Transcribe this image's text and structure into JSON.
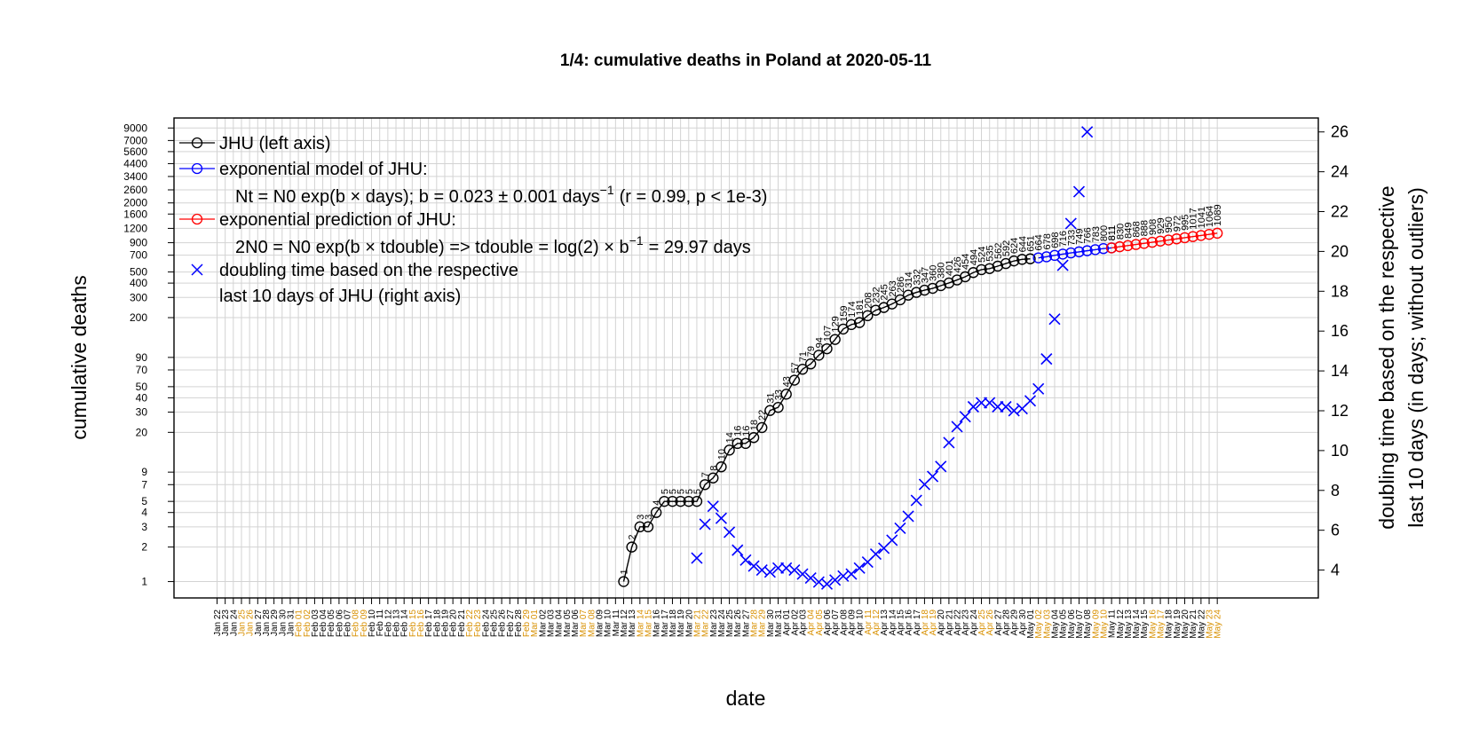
{
  "chart_data": {
    "type": "line",
    "title": "1/4: cumulative deaths in Poland at 2020-05-11",
    "xlabel": "date",
    "ylabel_left": "cumulative deaths",
    "ylabel_right_line1": "doubling time based on the respective",
    "ylabel_right_line2": "last 10 days (in days; without outliers)",
    "y_left_scale": "log",
    "y_left_range": [
      0.72,
      11000
    ],
    "y_right_range": [
      2.6,
      26.7
    ],
    "y_left_ticks": [
      1,
      2,
      3,
      4,
      5,
      7,
      9,
      20,
      30,
      40,
      50,
      70,
      90,
      200,
      300,
      400,
      500,
      700,
      900,
      1200,
      1600,
      2000,
      2600,
      3400,
      4400,
      5600,
      7000,
      9000
    ],
    "y_right_ticks": [
      4,
      6,
      8,
      10,
      12,
      14,
      16,
      18,
      20,
      22,
      24,
      26
    ],
    "x_start_label": "Jan 22",
    "x_labels": [
      "Jan 22",
      "Jan 23",
      "Jan 24",
      "Jan 25",
      "Jan 26",
      "Jan 27",
      "Jan 28",
      "Jan 29",
      "Jan 30",
      "Jan 31",
      "Feb 01",
      "Feb 02",
      "Feb 03",
      "Feb 04",
      "Feb 05",
      "Feb 06",
      "Feb 07",
      "Feb 08",
      "Feb 09",
      "Feb 10",
      "Feb 11",
      "Feb 12",
      "Feb 13",
      "Feb 14",
      "Feb 15",
      "Feb 16",
      "Feb 17",
      "Feb 18",
      "Feb 19",
      "Feb 20",
      "Feb 21",
      "Feb 22",
      "Feb 23",
      "Feb 24",
      "Feb 25",
      "Feb 26",
      "Feb 27",
      "Feb 28",
      "Feb 29",
      "Mar 01",
      "Mar 02",
      "Mar 03",
      "Mar 04",
      "Mar 05",
      "Mar 06",
      "Mar 07",
      "Mar 08",
      "Mar 09",
      "Mar 10",
      "Mar 11",
      "Mar 12",
      "Mar 13",
      "Mar 14",
      "Mar 15",
      "Mar 16",
      "Mar 17",
      "Mar 18",
      "Mar 19",
      "Mar 20",
      "Mar 21",
      "Mar 22",
      "Mar 23",
      "Mar 24",
      "Mar 25",
      "Mar 26",
      "Mar 27",
      "Mar 28",
      "Mar 29",
      "Mar 30",
      "Mar 31",
      "Apr 01",
      "Apr 02",
      "Apr 03",
      "Apr 04",
      "Apr 05",
      "Apr 06",
      "Apr 07",
      "Apr 08",
      "Apr 09",
      "Apr 10",
      "Apr 11",
      "Apr 12",
      "Apr 13",
      "Apr 14",
      "Apr 15",
      "Apr 16",
      "Apr 17",
      "Apr 18",
      "Apr 19",
      "Apr 20",
      "Apr 21",
      "Apr 22",
      "Apr 23",
      "Apr 24",
      "Apr 25",
      "Apr 26",
      "Apr 27",
      "Apr 28",
      "Apr 29",
      "Apr 30",
      "May 01",
      "May 02",
      "May 03",
      "May 04",
      "May 05",
      "May 06",
      "May 07",
      "May 08",
      "May 09",
      "May 10",
      "May 11",
      "May 12",
      "May 13",
      "May 14",
      "May 15",
      "May 16",
      "May 17",
      "May 18",
      "May 19",
      "May 20",
      "May 21",
      "May 22",
      "May 23",
      "May 24"
    ],
    "weekend_label_color": "#d89000",
    "series": [
      {
        "name": "JHU (left axis)",
        "color": "#000000",
        "marker": "circle",
        "start_label": "Mar 12",
        "values": [
          1,
          2,
          3,
          3,
          4,
          5,
          5,
          5,
          5,
          5,
          7,
          8,
          10,
          14,
          16,
          16,
          18,
          22,
          31,
          33,
          43,
          57,
          71,
          79,
          94,
          107,
          129,
          159,
          174,
          181,
          208,
          232,
          245,
          263,
          286,
          314,
          332,
          347,
          360,
          380,
          401,
          426,
          454,
          494,
          524,
          535,
          562,
          592,
          624,
          644,
          651
        ]
      },
      {
        "name": "exponential model of JHU:",
        "color": "#0000ff",
        "marker": "circle",
        "start_label": "May 02",
        "values": [
          664,
          678,
          698,
          716,
          733,
          749,
          766,
          783,
          800,
          811
        ]
      },
      {
        "name": "exponential prediction of JHU:",
        "color": "#ff0000",
        "marker": "circle",
        "start_label": "May 11",
        "values": [
          811,
          830,
          849,
          868,
          888,
          908,
          929,
          950,
          972,
          995,
          1017,
          1041,
          1064,
          1089
        ]
      },
      {
        "name": "doubling time based on the respective",
        "name_line2": "last 10 days of JHU (right axis)",
        "color": "#0000ff",
        "marker": "x",
        "axis": "right",
        "start_label": "Mar 21",
        "values": [
          4.6,
          6.3,
          7.2,
          6.6,
          5.9,
          5.0,
          4.5,
          4.2,
          4.0,
          3.9,
          4.1,
          4.1,
          4.0,
          3.8,
          3.6,
          3.4,
          3.3,
          3.5,
          3.7,
          3.8,
          4.1,
          4.4,
          4.8,
          5.1,
          5.5,
          6.1,
          6.7,
          7.5,
          8.3,
          8.7,
          9.2,
          10.4,
          11.2,
          11.7,
          12.2,
          12.4,
          12.4,
          12.2,
          12.2,
          12.0,
          12.1,
          12.5,
          13.1,
          14.6,
          16.6,
          19.3,
          21.4,
          23.0,
          26.0
        ]
      }
    ],
    "legend": {
      "placement": "top-left",
      "model_formula_main": "Nt = N0 exp(b × days); b = 0.023 ± 0.001 days",
      "model_formula_exp": "−1",
      "model_formula_tail": "(r = 0.99, p < 1e-3)",
      "prediction_formula_main": "2N0 = N0 exp(b × tdouble) => tdouble = log(2) × b",
      "prediction_formula_exp": "−1",
      "prediction_formula_tail": "= 29.97 days"
    },
    "grid": true
  }
}
